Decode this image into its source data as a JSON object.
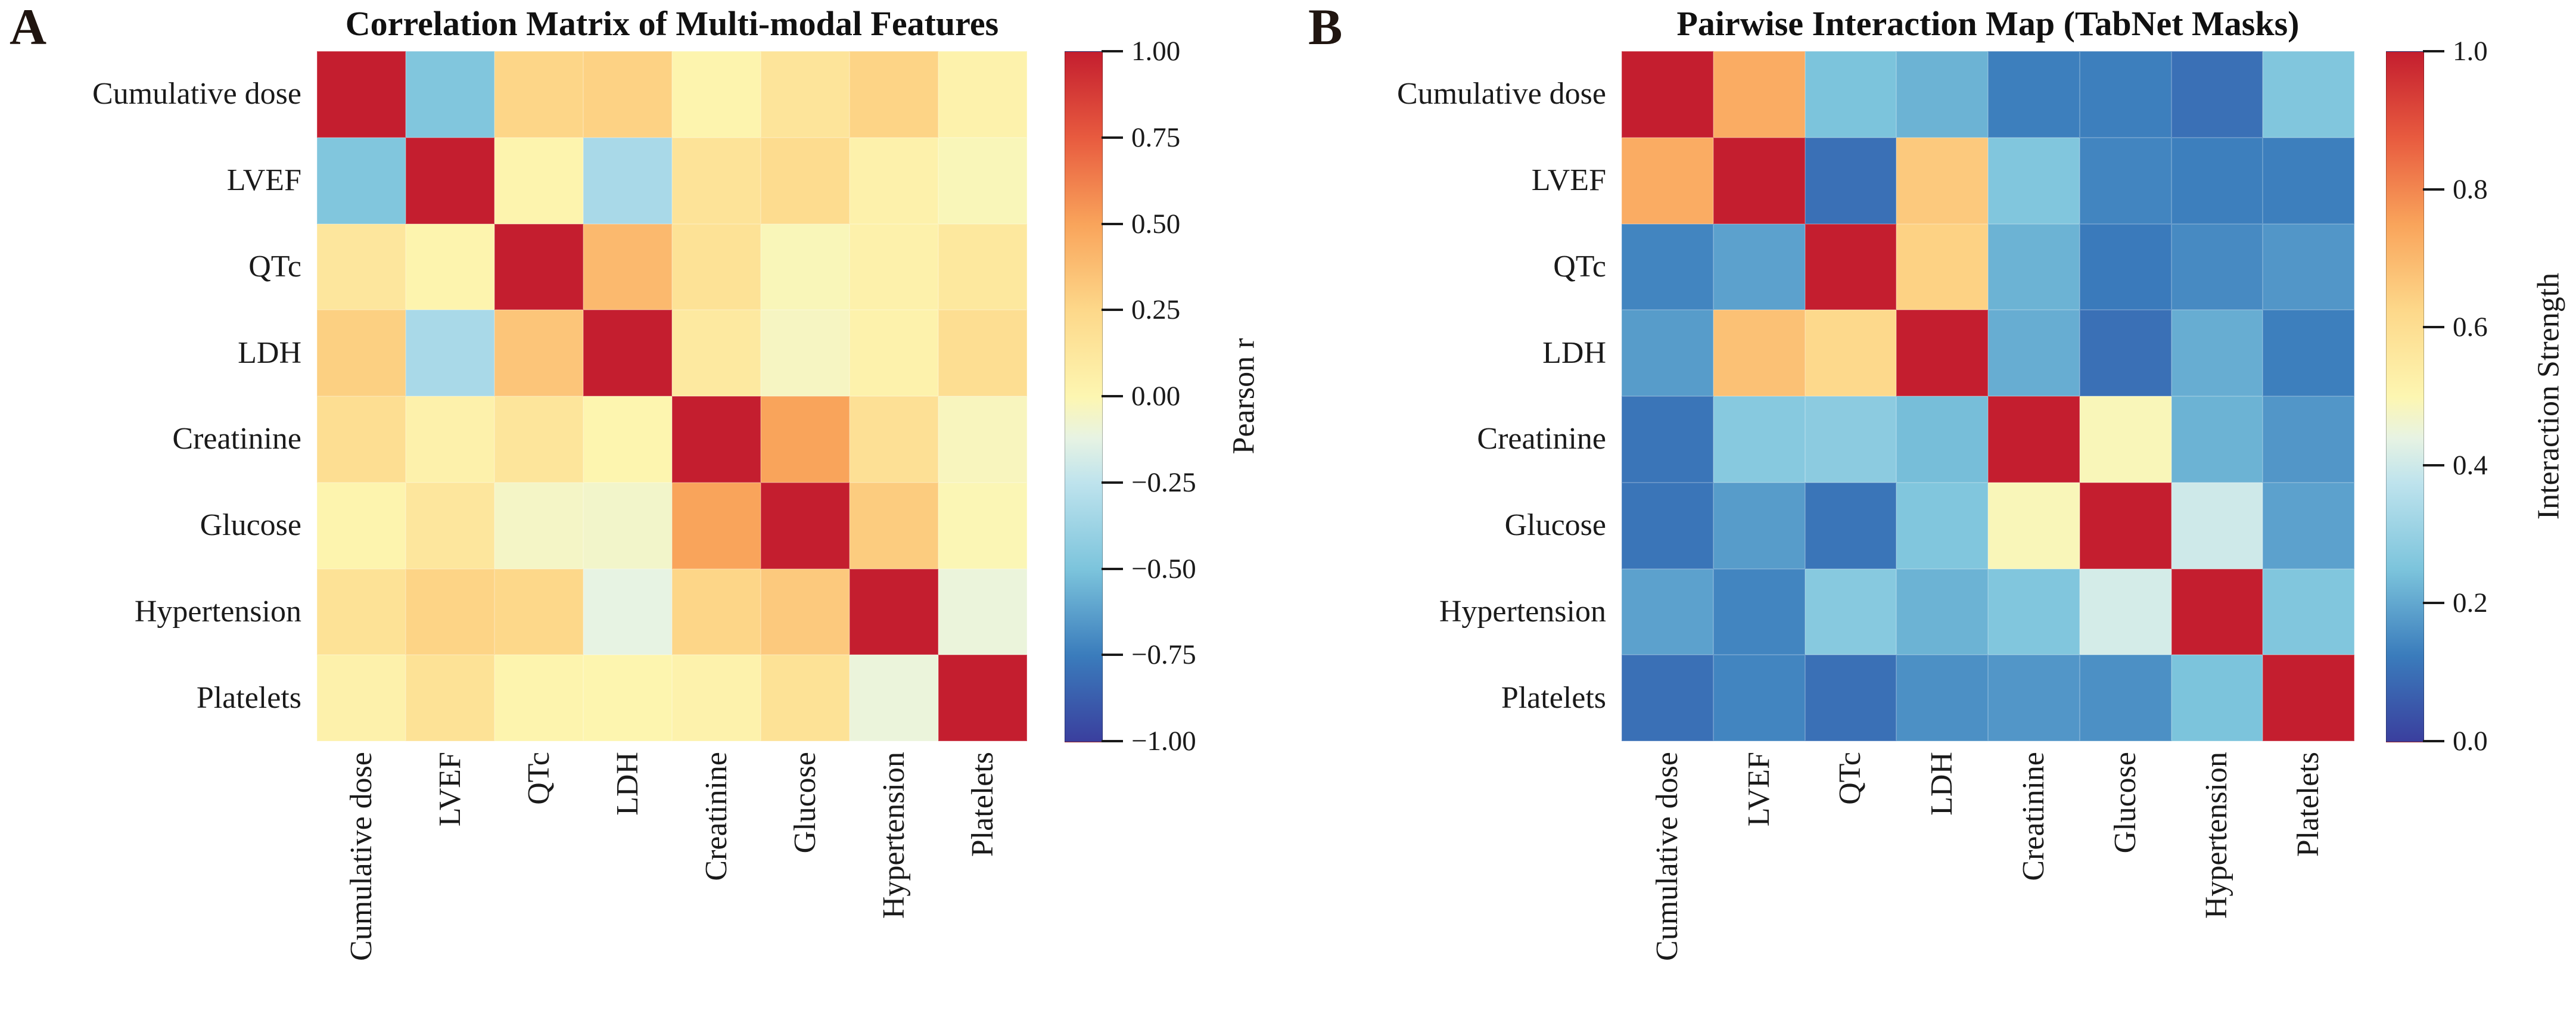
{
  "features": [
    "Cumulative dose",
    "LVEF",
    "QTc",
    "LDH",
    "Creatinine",
    "Glucose",
    "Hypertension",
    "Platelets"
  ],
  "colormap": {
    "name": "RdYlBu_r",
    "anchors": [
      [
        0.0,
        "#3a3f9e"
      ],
      [
        0.125,
        "#3a7cbc"
      ],
      [
        0.25,
        "#7cc4dc"
      ],
      [
        0.375,
        "#bee3ed"
      ],
      [
        0.44,
        "#e7f3e3"
      ],
      [
        0.5,
        "#fdf6b1"
      ],
      [
        0.625,
        "#fdd88a"
      ],
      [
        0.75,
        "#f9a45b"
      ],
      [
        0.875,
        "#e85b3f"
      ],
      [
        1.0,
        "#c41e2f"
      ]
    ]
  },
  "chart_data": [
    {
      "type": "heatmap",
      "panel_letter": "A",
      "title": "Correlation Matrix of Multi-modal Features",
      "x_labels": [
        "Cumulative dose",
        "LVEF",
        "QTc",
        "LDH",
        "Creatinine",
        "Glucose",
        "Hypertension",
        "Platelets"
      ],
      "y_labels": [
        "Cumulative dose",
        "LVEF",
        "QTc",
        "LDH",
        "Creatinine",
        "Glucose",
        "Hypertension",
        "Platelets"
      ],
      "vmin": -1.0,
      "vmax": 1.0,
      "colorbar_label": "Pearson r",
      "colorbar_ticks": [
        "1.00",
        "0.75",
        "0.50",
        "0.25",
        "0.00",
        "−0.25",
        "−0.50",
        "−0.75",
        "−1.00"
      ],
      "grid": false,
      "legend_position": "right-colorbar",
      "values": [
        [
          1.0,
          -0.48,
          0.26,
          0.28,
          0.02,
          0.15,
          0.27,
          0.03
        ],
        [
          -0.48,
          1.0,
          0.02,
          -0.33,
          0.16,
          0.22,
          0.04,
          -0.02
        ],
        [
          0.13,
          0.02,
          1.0,
          0.4,
          0.17,
          -0.02,
          0.04,
          0.12
        ],
        [
          0.29,
          -0.33,
          0.34,
          1.0,
          0.11,
          -0.04,
          0.03,
          0.2
        ],
        [
          0.2,
          0.04,
          0.14,
          0.01,
          1.0,
          0.5,
          0.18,
          -0.03
        ],
        [
          0.02,
          0.13,
          -0.05,
          -0.06,
          0.5,
          1.0,
          0.31,
          -0.01
        ],
        [
          0.17,
          0.27,
          0.25,
          -0.12,
          0.26,
          0.32,
          1.0,
          -0.1
        ],
        [
          0.04,
          0.17,
          0.02,
          0.01,
          0.03,
          0.17,
          -0.1,
          1.0
        ]
      ]
    },
    {
      "type": "heatmap",
      "panel_letter": "B",
      "title": "Pairwise Interaction Map (TabNet Masks)",
      "x_labels": [
        "Cumulative dose",
        "LVEF",
        "QTc",
        "LDH",
        "Creatinine",
        "Glucose",
        "Hypertension",
        "Platelets"
      ],
      "y_labels": [
        "Cumulative dose",
        "LVEF",
        "QTc",
        "LDH",
        "Creatinine",
        "Glucose",
        "Hypertension",
        "Platelets"
      ],
      "vmin": 0.0,
      "vmax": 1.0,
      "colorbar_label": "Interaction Strength",
      "colorbar_ticks": [
        "1.0",
        "0.8",
        "0.6",
        "0.4",
        "0.2",
        "0.0"
      ],
      "grid": false,
      "legend_position": "right-colorbar",
      "values": [
        [
          1.0,
          0.73,
          0.25,
          0.22,
          0.13,
          0.13,
          0.1,
          0.26
        ],
        [
          0.73,
          1.0,
          0.1,
          0.66,
          0.26,
          0.14,
          0.13,
          0.13
        ],
        [
          0.14,
          0.19,
          1.0,
          0.64,
          0.22,
          0.12,
          0.15,
          0.17
        ],
        [
          0.18,
          0.68,
          0.62,
          1.0,
          0.21,
          0.1,
          0.21,
          0.13
        ],
        [
          0.11,
          0.27,
          0.28,
          0.24,
          1.0,
          0.49,
          0.22,
          0.17
        ],
        [
          0.11,
          0.18,
          0.11,
          0.26,
          0.49,
          1.0,
          0.4,
          0.19
        ],
        [
          0.19,
          0.14,
          0.27,
          0.22,
          0.26,
          0.41,
          1.0,
          0.26
        ],
        [
          0.1,
          0.14,
          0.1,
          0.16,
          0.17,
          0.16,
          0.25,
          1.0
        ]
      ]
    }
  ]
}
